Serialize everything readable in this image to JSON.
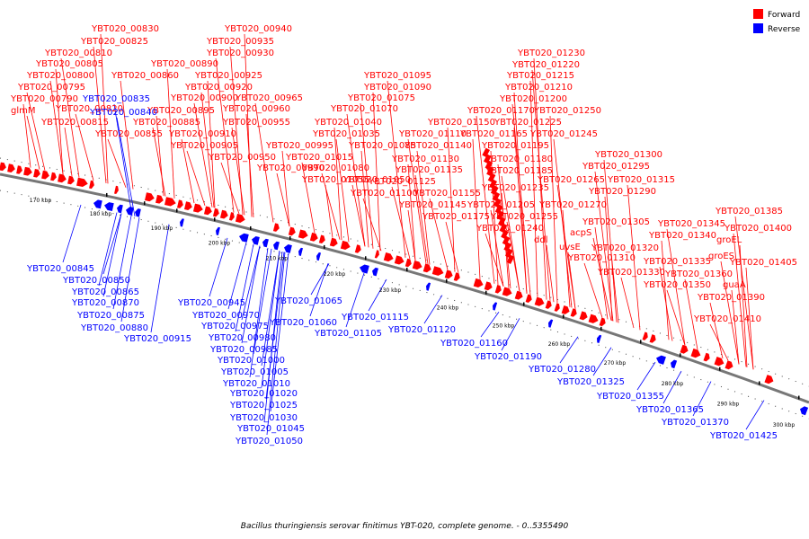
{
  "caption": "Bacillus thuringiensis serovar finitimus YBT-020, complete genome. - 0..5355490",
  "legend": [
    {
      "label": "Forward",
      "color": "#ff0000"
    },
    {
      "label": "Reverse",
      "color": "#0000ff"
    }
  ],
  "colors": {
    "forward": "#ff0000",
    "reverse": "#0000ff",
    "backbone": "#666666"
  },
  "ticks": [
    "170 kbp",
    "180 kbp",
    "190 kbp",
    "200 kbp",
    "210 kbp",
    "220 kbp",
    "230 kbp",
    "240 kbp",
    "250 kbp",
    "260 kbp",
    "270 kbp",
    "280 kbp",
    "290 kbp",
    "300 kbp"
  ],
  "forward_labels": [
    "YBT020_00830",
    "YBT020_00825",
    "YBT020_00810",
    "YBT020_00805",
    "YBT020_00800",
    "YBT020_00795",
    "YBT020_00790",
    "glmM",
    "YBT020_00820",
    "YBT020_00815",
    "YBT020_00860",
    "YBT020_00855",
    "YBT020_00890",
    "YBT020_00885",
    "YBT020_00900",
    "YBT020_00895",
    "YBT020_00910",
    "YBT020_00905",
    "YBT020_00940",
    "YBT020_00935",
    "YBT020_00930",
    "YBT020_00925",
    "YBT020_00920",
    "YBT020_00965",
    "YBT020_00960",
    "YBT020_00955",
    "YBT020_00950",
    "YBT020_00995",
    "YBT020_00990",
    "YBT020_01095",
    "YBT020_01090",
    "YBT020_01075",
    "YBT020_01070",
    "YBT020_01040",
    "YBT020_01035",
    "YBT020_01110",
    "YBT020_01085",
    "YBT020_01015",
    "YBT020_01080",
    "YBT020_01055",
    "YBT020_01050",
    "YBT020_01100",
    "YBT020_01130",
    "YBT020_01135",
    "YBT020_01125",
    "YBT020_01145",
    "YBT020_01140",
    "YBT020_01155",
    "YBT020_01150",
    "YBT020_01175",
    "YBT020_01170",
    "YBT020_01165",
    "YBT020_01230",
    "YBT020_01220",
    "YBT020_01215",
    "YBT020_01210",
    "YBT020_01200",
    "YBT020_01250",
    "YBT020_01225",
    "YBT020_01245",
    "YBT020_01195",
    "YBT020_01180",
    "YBT020_01185",
    "YBT020_01235",
    "YBT020_01205",
    "YBT020_01240",
    "ddl",
    "YBT020_01255",
    "YBT020_01265",
    "YBT020_01270",
    "YBT020_01300",
    "YBT020_01295",
    "YBT020_01290",
    "YBT020_01315",
    "acpS",
    "uvsE",
    "YBT020_01305",
    "YBT020_01310",
    "YBT020_01320",
    "YBT020_01330",
    "YBT020_01345",
    "YBT020_01340",
    "YBT020_01335",
    "YBT020_01385",
    "groEL",
    "YBT020_01400",
    "groES",
    "YBT020_01405",
    "YBT020_01360",
    "YBT020_01350",
    "guaA",
    "YBT020_01390",
    "YBT020_01410"
  ],
  "reverse_labels": [
    "YBT020_00840",
    "YBT020_00835",
    "YBT020_00845",
    "YBT020_00850",
    "YBT020_00865",
    "YBT020_00870",
    "YBT020_00875",
    "YBT020_00880",
    "YBT020_00915",
    "YBT020_00945",
    "YBT020_00970",
    "YBT020_00975",
    "YBT020_00980",
    "YBT020_00985",
    "YBT020_01000",
    "YBT020_01005",
    "YBT020_01010",
    "YBT020_01020",
    "YBT020_01025",
    "YBT020_01030",
    "YBT020_01045",
    "YBT020_01050",
    "YBT020_01065",
    "YBT020_01060",
    "YBT020_01115",
    "YBT020_01105",
    "YBT020_01120",
    "YBT020_01160",
    "YBT020_01190",
    "YBT020_01280",
    "YBT020_01325",
    "YBT020_01355",
    "YBT020_01365",
    "YBT020_01370",
    "YBT020_01425"
  ]
}
